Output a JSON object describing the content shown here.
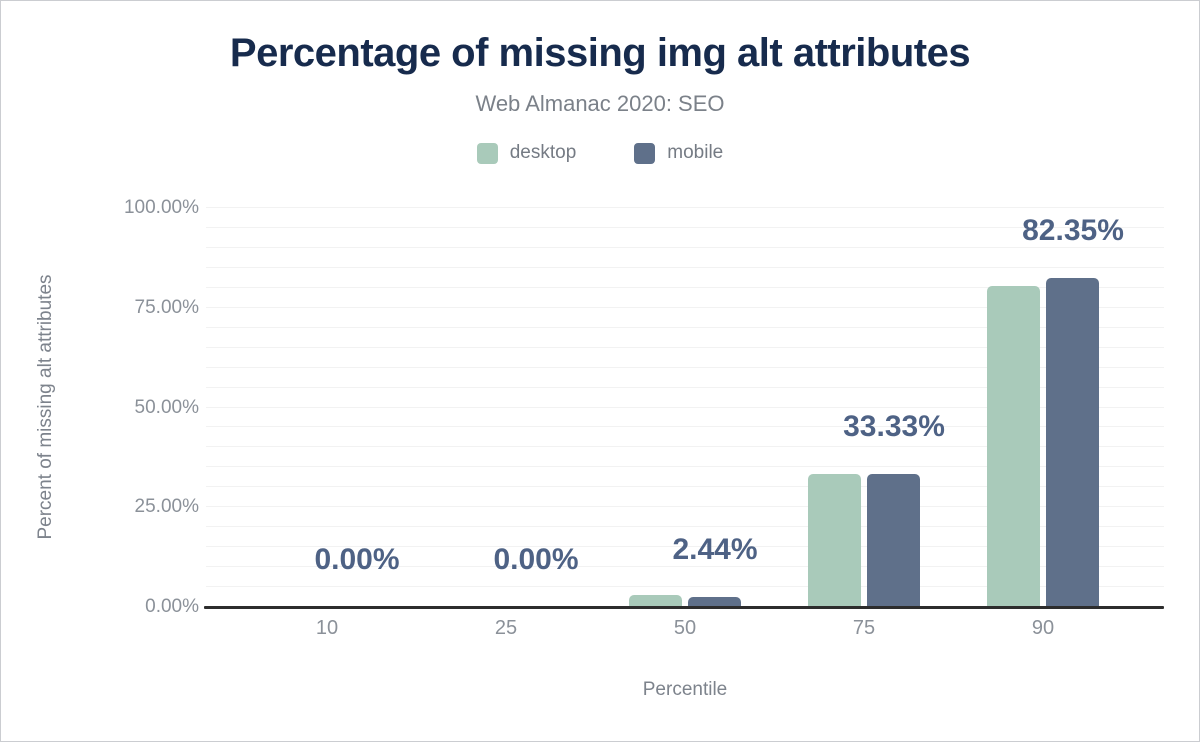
{
  "header": {
    "title": "Percentage of missing img alt attributes",
    "subtitle": "Web Almanac 2020: SEO"
  },
  "legend": {
    "items": [
      {
        "label": "desktop",
        "color": "#a9caba"
      },
      {
        "label": "mobile",
        "color": "#5f708a"
      }
    ]
  },
  "chart_data": {
    "type": "bar",
    "title": "Percentage of missing img alt attributes",
    "subtitle": "Web Almanac 2020: SEO",
    "xlabel": "Percentile",
    "ylabel": "Percent of missing alt attributes",
    "categories": [
      "10",
      "25",
      "50",
      "75",
      "90"
    ],
    "series": [
      {
        "name": "desktop",
        "color": "#a9caba",
        "values": [
          0,
          0,
          3.0,
          33.33,
          80.5
        ]
      },
      {
        "name": "mobile",
        "color": "#5f708a",
        "values": [
          0,
          0,
          2.44,
          33.33,
          82.35
        ]
      }
    ],
    "data_labels": {
      "series": "mobile",
      "values": [
        "0.00%",
        "0.00%",
        "2.44%",
        "33.33%",
        "82.35%"
      ]
    },
    "ylim": [
      0,
      100
    ],
    "y_ticks": [
      {
        "value": 100,
        "label": "100.00%"
      },
      {
        "value": 75,
        "label": "75.00%"
      },
      {
        "value": 50,
        "label": "50.00%"
      },
      {
        "value": 25,
        "label": "25.00%"
      },
      {
        "value": 0,
        "label": "0.00%"
      }
    ],
    "grid": {
      "on": true,
      "minor_step": 5,
      "color": "#f2f2f2"
    },
    "legend_position": "top",
    "colors": {
      "title": "#172b4d",
      "subtitle": "#7b8189",
      "legend_text": "#757b84",
      "tick_text": "#8b9199",
      "axis_title_text": "#7d838c",
      "data_label": "#4e6285",
      "axis_line": "#2d2d2d"
    }
  }
}
